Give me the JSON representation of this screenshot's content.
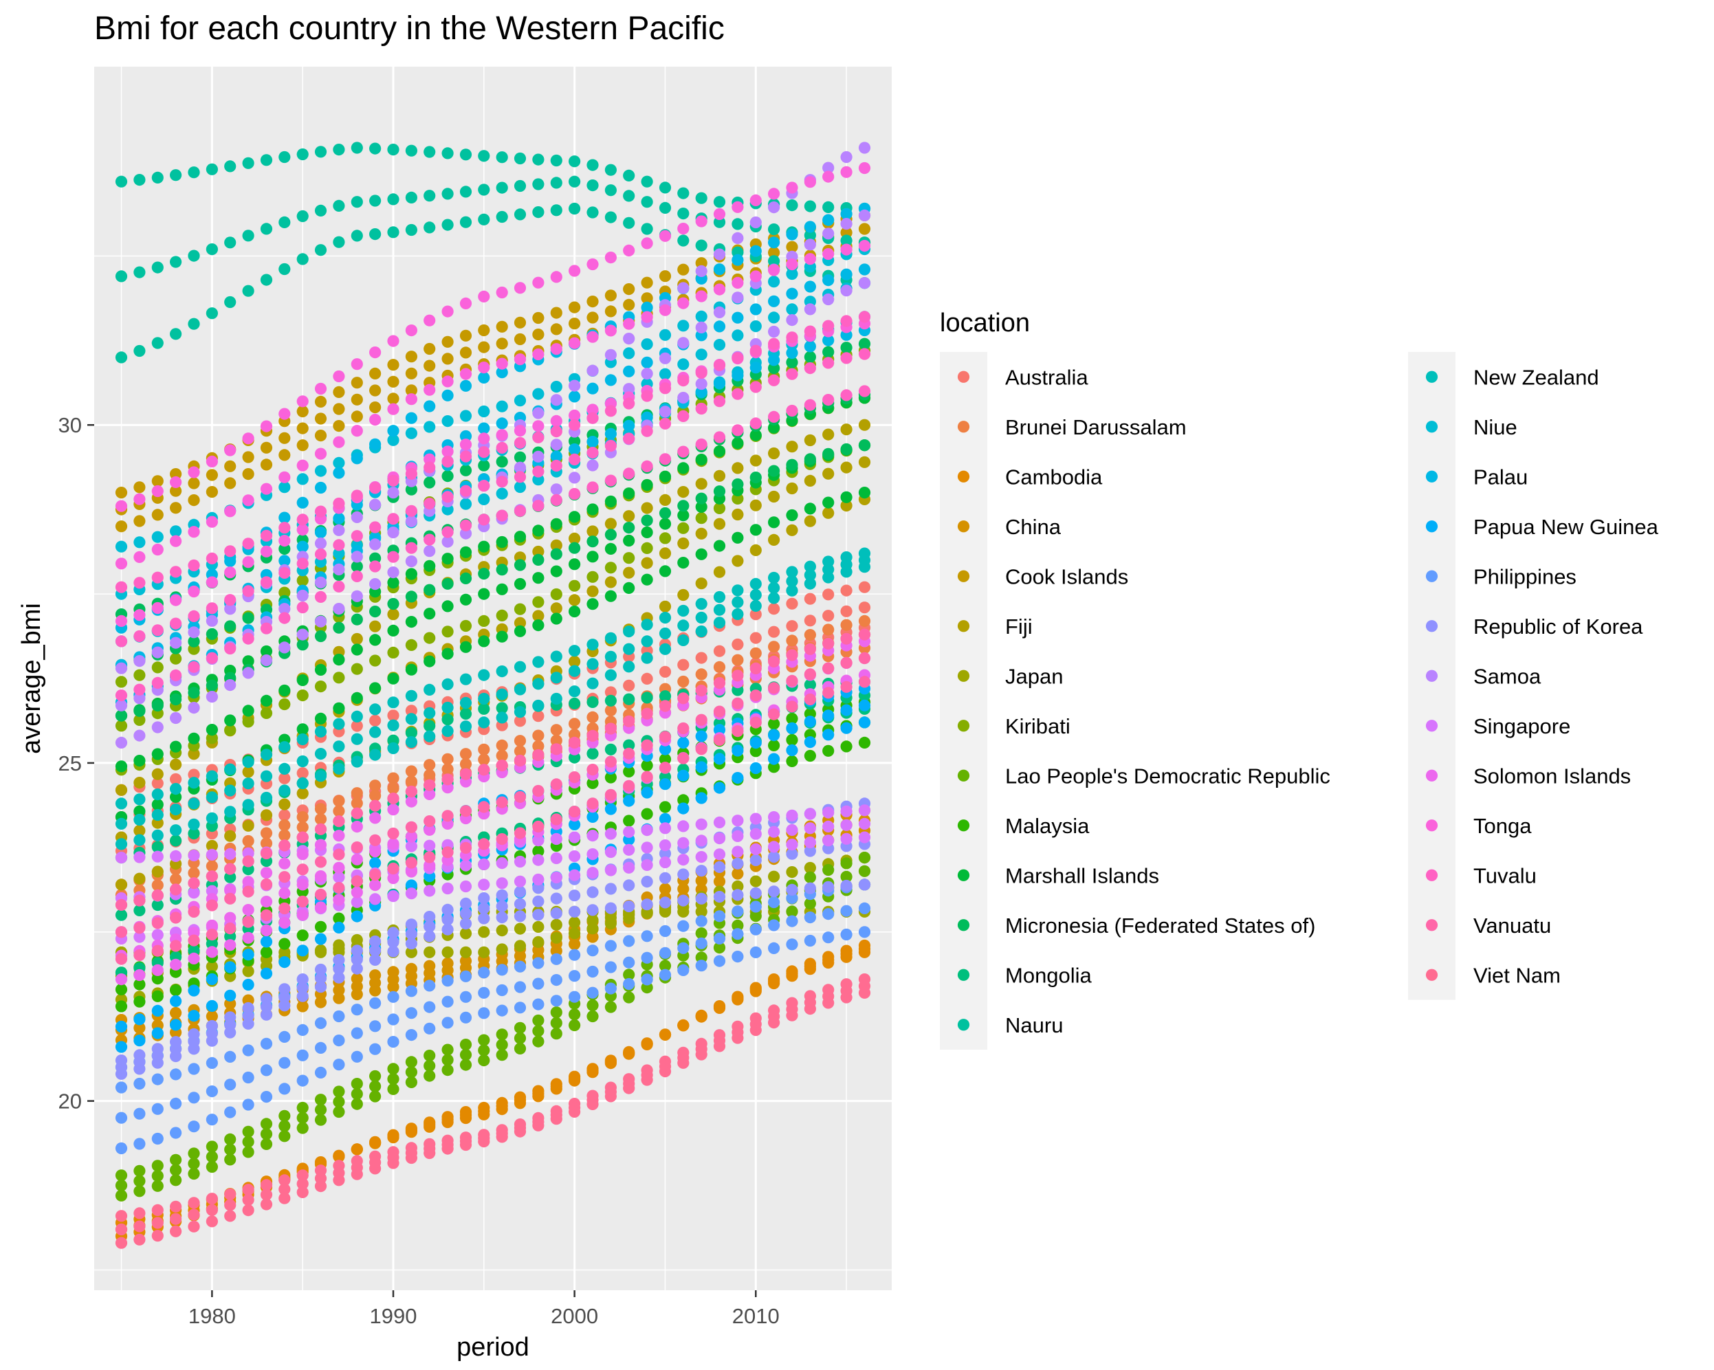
{
  "chart_data": {
    "type": "scatter",
    "title": "Bmi for each country in the Western Pacific",
    "xlabel": "period",
    "ylabel": "average_bmi",
    "xlim": [
      1973.5,
      2017.5
    ],
    "ylim": [
      17.2,
      35.3
    ],
    "xticks": [
      1980,
      1990,
      2000,
      2010
    ],
    "yticks": [
      20,
      25,
      30
    ],
    "grid": true,
    "legend": {
      "title": "location",
      "position": "right"
    },
    "x": [
      1975,
      1976,
      1977,
      1978,
      1979,
      1980,
      1981,
      1982,
      1983,
      1984,
      1985,
      1986,
      1987,
      1988,
      1989,
      1990,
      1991,
      1992,
      1993,
      1994,
      1995,
      1996,
      1997,
      1998,
      1999,
      2000,
      2001,
      2002,
      2003,
      2004,
      2005,
      2006,
      2007,
      2008,
      2009,
      2010,
      2011,
      2012,
      2013,
      2014,
      2015,
      2016
    ],
    "series_note": "each series has three values per year: male, female, both sexes",
    "series": [
      {
        "name": "Australia",
        "color": "#F8766D",
        "knots": [
          [
            1975,
            24.6,
            23.7,
            24.2
          ],
          [
            1995,
            26.0,
            24.9,
            25.5
          ],
          [
            2016,
            27.6,
            27.0,
            27.3
          ]
        ]
      },
      {
        "name": "Brunei Darussalam",
        "color": "#EE8043",
        "knots": [
          [
            1975,
            23.2,
            22.9,
            23.05
          ],
          [
            1995,
            25.2,
            24.9,
            25.05
          ],
          [
            2016,
            27.1,
            26.7,
            26.9
          ]
        ]
      },
      {
        "name": "Cambodia",
        "color": "#E38900",
        "knots": [
          [
            1975,
            18.2,
            18.0,
            18.1
          ],
          [
            1995,
            19.8,
            19.9,
            19.85
          ],
          [
            2016,
            22.3,
            22.2,
            22.25
          ]
        ]
      },
      {
        "name": "China",
        "color": "#D59100",
        "knots": [
          [
            1975,
            21.2,
            20.9,
            21.05
          ],
          [
            1995,
            22.1,
            21.9,
            22.0
          ],
          [
            2016,
            24.3,
            24.0,
            24.15
          ]
        ]
      },
      {
        "name": "Cook Islands",
        "color": "#C59900",
        "knots": [
          [
            1975,
            29.0,
            28.5,
            28.75
          ],
          [
            1995,
            31.4,
            30.9,
            31.15
          ],
          [
            2016,
            33.1,
            32.7,
            32.9
          ]
        ]
      },
      {
        "name": "Fiji",
        "color": "#B3A000",
        "knots": [
          [
            1975,
            24.6,
            23.2,
            23.9
          ],
          [
            1995,
            27.9,
            25.9,
            26.9
          ],
          [
            2016,
            30.0,
            28.9,
            29.45
          ]
        ]
      },
      {
        "name": "Japan",
        "color": "#9EA700",
        "knots": [
          [
            1975,
            22.2,
            21.5,
            21.85
          ],
          [
            1995,
            22.2,
            22.8,
            22.5
          ],
          [
            2016,
            23.6,
            22.8,
            23.2
          ]
        ]
      },
      {
        "name": "Kiribati",
        "color": "#85AD00",
        "knots": [
          [
            1975,
            26.2,
            24.9,
            25.55
          ],
          [
            1995,
            29.2,
            27.1,
            28.15
          ],
          [
            2016,
            31.1,
            29.7,
            30.4
          ]
        ]
      },
      {
        "name": "Lao People's Democratic Republic",
        "color": "#64B200",
        "knots": [
          [
            1975,
            18.9,
            18.6,
            18.75
          ],
          [
            1995,
            20.9,
            20.6,
            20.75
          ],
          [
            2016,
            23.6,
            23.2,
            23.4
          ]
        ]
      },
      {
        "name": "Malaysia",
        "color": "#2EB700",
        "knots": [
          [
            1975,
            21.9,
            21.4,
            21.65
          ],
          [
            1995,
            24.3,
            23.5,
            23.9
          ],
          [
            2016,
            25.9,
            25.3,
            25.6
          ]
        ]
      },
      {
        "name": "Marshall Islands",
        "color": "#00BA38",
        "knots": [
          [
            1975,
            25.7,
            24.2,
            24.95
          ],
          [
            1995,
            28.2,
            26.8,
            27.5
          ],
          [
            2016,
            30.4,
            29.0,
            29.7
          ]
        ]
      },
      {
        "name": "Micronesia (Federated States of)",
        "color": "#00BC5B",
        "knots": [
          [
            1975,
            27.2,
            25.7,
            26.45
          ],
          [
            1995,
            29.4,
            27.8,
            28.6
          ],
          [
            2016,
            31.2,
            29.7,
            30.45
          ]
        ]
      },
      {
        "name": "Mongolia",
        "color": "#00BF7D",
        "knots": [
          [
            1975,
            23.6,
            21.9,
            22.75
          ],
          [
            1995,
            25.8,
            23.9,
            24.85
          ],
          [
            2016,
            26.2,
            25.8,
            26.0
          ]
        ]
      },
      {
        "name": "Nauru",
        "color": "#00C19F",
        "knots": [
          [
            1975,
            33.6,
            32.2,
            31.0
          ],
          [
            1988,
            34.1,
            33.3,
            32.8
          ],
          [
            2000,
            33.9,
            33.6,
            33.2
          ],
          [
            2008,
            33.3,
            33.0,
            32.6
          ],
          [
            2016,
            33.2,
            32.7,
            32.1
          ]
        ]
      },
      {
        "name": "New Zealand",
        "color": "#00BFBB",
        "knots": [
          [
            1975,
            24.4,
            23.8,
            24.1
          ],
          [
            1995,
            26.3,
            25.6,
            25.95
          ],
          [
            2016,
            28.1,
            27.9,
            28.0
          ]
        ]
      },
      {
        "name": "Niue",
        "color": "#00BDD5",
        "knots": [
          [
            1975,
            28.2,
            26.8,
            27.5
          ],
          [
            1995,
            30.2,
            28.9,
            29.55
          ],
          [
            2016,
            32.6,
            31.6,
            32.1
          ]
        ]
      },
      {
        "name": "Palau",
        "color": "#00B8E5",
        "knots": [
          [
            1975,
            27.0,
            25.9,
            26.45
          ],
          [
            1995,
            30.7,
            29.2,
            29.95
          ],
          [
            2016,
            33.2,
            31.4,
            32.3
          ]
        ]
      },
      {
        "name": "Papua New Guinea",
        "color": "#00AEF9",
        "knots": [
          [
            1975,
            21.1,
            20.5,
            20.8
          ],
          [
            1995,
            24.4,
            22.9,
            23.65
          ],
          [
            2016,
            26.1,
            25.6,
            25.85
          ]
        ]
      },
      {
        "name": "Philippines",
        "color": "#619CFF",
        "knots": [
          [
            1975,
            20.2,
            19.3,
            19.75
          ],
          [
            1995,
            21.9,
            21.3,
            21.6
          ],
          [
            2016,
            23.2,
            22.5,
            22.85
          ]
        ]
      },
      {
        "name": "Republic of Korea",
        "color": "#8F91FF",
        "knots": [
          [
            1975,
            20.6,
            20.4,
            20.5
          ],
          [
            1995,
            23.0,
            22.7,
            22.85
          ],
          [
            2016,
            24.4,
            23.2,
            23.8
          ]
        ]
      },
      {
        "name": "Samoa",
        "color": "#B983FF",
        "knots": [
          [
            1975,
            26.4,
            25.3,
            25.85
          ],
          [
            1995,
            29.7,
            28.5,
            29.1
          ],
          [
            2016,
            34.1,
            32.1,
            33.1
          ]
        ]
      },
      {
        "name": "Singapore",
        "color": "#D774FD",
        "knots": [
          [
            1975,
            23.6,
            22.4,
            23.0
          ],
          [
            1995,
            23.8,
            23.2,
            23.5
          ],
          [
            2016,
            24.3,
            23.9,
            24.1
          ]
        ]
      },
      {
        "name": "Solomon Islands",
        "color": "#EC68EE",
        "knots": [
          [
            1975,
            22.5,
            21.8,
            22.15
          ],
          [
            1995,
            24.8,
            23.7,
            24.25
          ],
          [
            2016,
            26.8,
            26.3,
            26.55
          ]
        ]
      },
      {
        "name": "Tonga",
        "color": "#FA62DB",
        "knots": [
          [
            1975,
            28.8,
            27.1,
            27.95
          ],
          [
            1995,
            31.9,
            29.8,
            30.85
          ],
          [
            2016,
            33.8,
            31.5,
            32.65
          ]
        ]
      },
      {
        "name": "Tuvalu",
        "color": "#FF61C3",
        "knots": [
          [
            1975,
            27.6,
            26.0,
            26.8
          ],
          [
            1995,
            29.6,
            28.6,
            29.1
          ],
          [
            2016,
            31.6,
            30.5,
            31.05
          ]
        ]
      },
      {
        "name": "Vanuatu",
        "color": "#FF66A8",
        "knots": [
          [
            1975,
            22.9,
            22.1,
            22.5
          ],
          [
            1995,
            24.9,
            23.8,
            24.35
          ],
          [
            2016,
            26.9,
            26.2,
            26.55
          ]
        ]
      },
      {
        "name": "Viet Nam",
        "color": "#FF6C91",
        "knots": [
          [
            1975,
            18.3,
            17.9,
            18.1
          ],
          [
            1995,
            19.5,
            19.4,
            19.45
          ],
          [
            2016,
            21.8,
            21.6,
            21.7
          ]
        ]
      }
    ]
  }
}
